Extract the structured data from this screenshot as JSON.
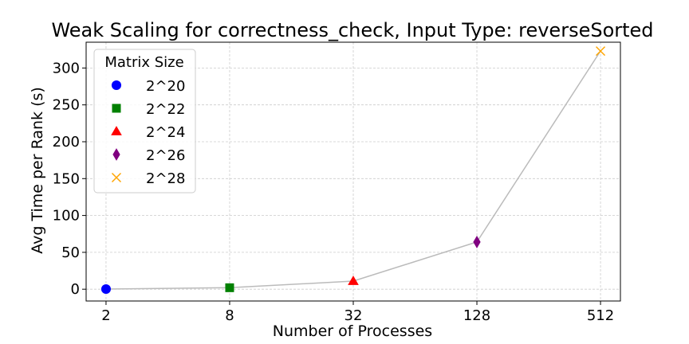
{
  "chart_data": {
    "type": "scatter",
    "title": "Weak Scaling for correctness_check, Input Type: reverseSorted",
    "xlabel": "Number of Processes",
    "ylabel": "Avg Time per Rank (s)",
    "x_scale": "log2",
    "x_ticks": [
      2,
      8,
      32,
      128,
      512
    ],
    "x_tick_labels": [
      "2",
      "8",
      "32",
      "128",
      "512"
    ],
    "xlim": [
      1.6,
      640
    ],
    "y_ticks": [
      0,
      50,
      100,
      150,
      200,
      250,
      300
    ],
    "ylim": [
      -16,
      335
    ],
    "grid": true,
    "connecting_line": {
      "color": "#bbbbbb"
    },
    "legend": {
      "title": "Matrix Size",
      "location": "upper-left"
    },
    "series": [
      {
        "name": "2^20",
        "x": 2,
        "y": 0.2,
        "marker": "circle",
        "color": "#0000ff"
      },
      {
        "name": "2^22",
        "x": 8,
        "y": 2,
        "marker": "square",
        "color": "#008000"
      },
      {
        "name": "2^24",
        "x": 32,
        "y": 11,
        "marker": "triangle",
        "color": "#ff0000"
      },
      {
        "name": "2^26",
        "x": 128,
        "y": 64,
        "marker": "diamond",
        "color": "#800080"
      },
      {
        "name": "2^28",
        "x": 512,
        "y": 323,
        "marker": "x",
        "color": "#ffa500"
      }
    ]
  }
}
